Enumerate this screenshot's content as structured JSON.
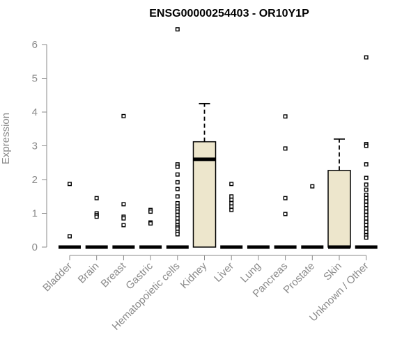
{
  "chart_data": {
    "type": "box",
    "title": "ENSG00000254403 - OR10Y1P",
    "xlabel": "",
    "ylabel": "Expression",
    "ylim": [
      0,
      6.5
    ],
    "yticks": [
      "0",
      "1",
      "2",
      "3",
      "4",
      "5",
      "6"
    ],
    "grid": false,
    "legend": "none",
    "box_fill": "#ede6cc",
    "outlier_color": "#000000",
    "categories": [
      "Bladder",
      "Brain",
      "Breast",
      "Gastric",
      "Hematopoietic cells",
      "Kidney",
      "Liver",
      "Lung",
      "Pancreas",
      "Prostate",
      "Skin",
      "Unknown / Other"
    ],
    "boxes": [
      {
        "q1": 0,
        "median": 0,
        "q3": 0,
        "whisker_low": 0,
        "whisker_high": 0,
        "outliers": [
          1.87,
          0.32
        ]
      },
      {
        "q1": 0,
        "median": 0,
        "q3": 0,
        "whisker_low": 0,
        "whisker_high": 0,
        "outliers": [
          1.45,
          1.0,
          0.95,
          0.9
        ]
      },
      {
        "q1": 0,
        "median": 0,
        "q3": 0,
        "whisker_low": 0,
        "whisker_high": 0,
        "outliers": [
          3.88,
          1.27,
          0.9,
          0.85,
          0.65
        ]
      },
      {
        "q1": 0,
        "median": 0,
        "q3": 0,
        "whisker_low": 0,
        "whisker_high": 0,
        "outliers": [
          1.1,
          1.05,
          0.73,
          0.7
        ]
      },
      {
        "q1": 0,
        "median": 0,
        "q3": 0,
        "whisker_low": 0,
        "whisker_high": 0,
        "outliers": [
          6.45,
          2.45,
          2.38,
          2.15,
          1.92,
          1.72,
          1.5,
          1.3,
          1.2,
          1.12,
          1.05,
          0.95,
          0.85,
          0.75,
          0.65,
          0.6,
          0.55,
          0.45,
          0.38
        ]
      },
      {
        "q1": 0,
        "median": 2.6,
        "q3": 3.12,
        "whisker_low": 0,
        "whisker_high": 4.25,
        "outliers": []
      },
      {
        "q1": 0,
        "median": 0,
        "q3": 0,
        "whisker_low": 0,
        "whisker_high": 0,
        "outliers": [
          1.87,
          1.5,
          1.4,
          1.3,
          1.2,
          1.1
        ]
      },
      {
        "q1": 0,
        "median": 0,
        "q3": 0,
        "whisker_low": 0,
        "whisker_high": 0,
        "outliers": []
      },
      {
        "q1": 0,
        "median": 0,
        "q3": 0,
        "whisker_low": 0,
        "whisker_high": 0,
        "outliers": [
          3.87,
          2.92,
          1.45,
          0.98
        ]
      },
      {
        "q1": 0,
        "median": 0,
        "q3": 0,
        "whisker_low": 0,
        "whisker_high": 0,
        "outliers": [
          1.8
        ]
      },
      {
        "q1": 0,
        "median": 0,
        "q3": 2.27,
        "whisker_low": 0,
        "whisker_high": 3.2,
        "outliers": []
      },
      {
        "q1": 0,
        "median": 0,
        "q3": 0,
        "whisker_low": 0,
        "whisker_high": 0,
        "outliers": [
          5.62,
          3.05,
          3.0,
          2.45,
          2.05,
          1.85,
          1.7,
          1.55,
          1.45,
          1.35,
          1.25,
          1.15,
          1.05,
          0.95,
          0.85,
          0.75,
          0.65,
          0.55,
          0.45,
          0.35,
          0.28
        ]
      }
    ]
  }
}
